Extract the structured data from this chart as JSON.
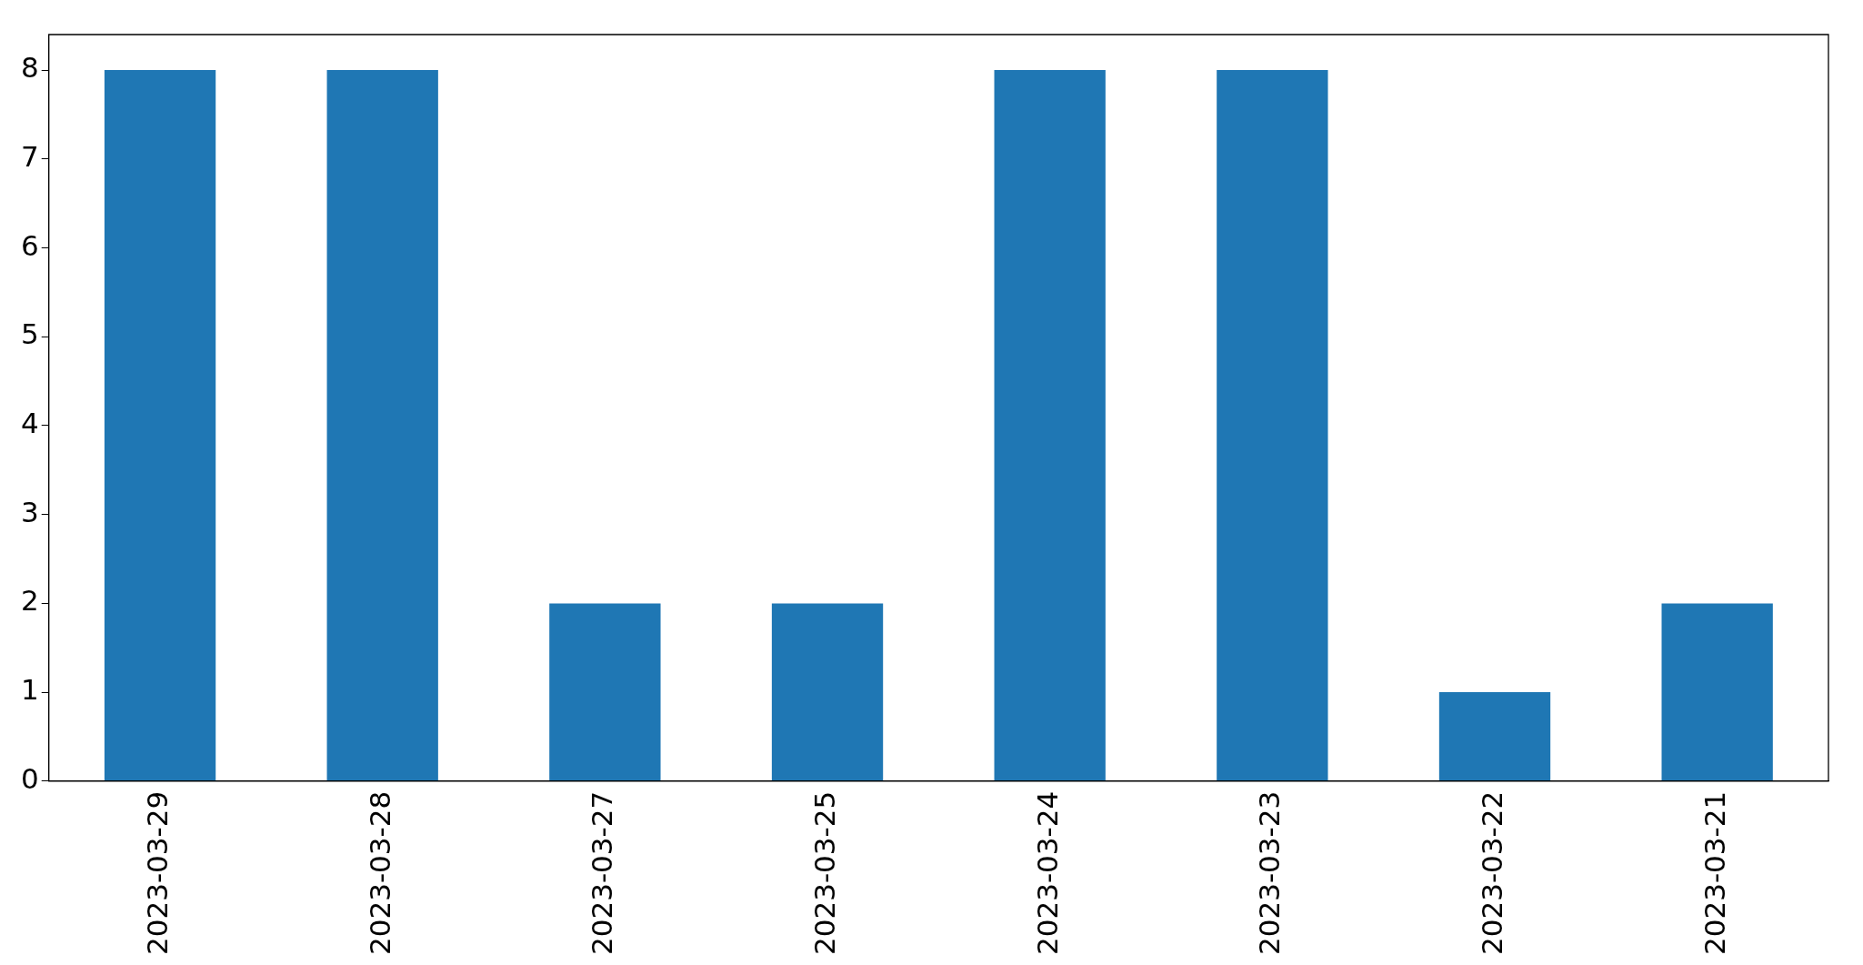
{
  "chart_data": {
    "type": "bar",
    "categories": [
      "2023-03-29",
      "2023-03-28",
      "2023-03-27",
      "2023-03-25",
      "2023-03-24",
      "2023-03-23",
      "2023-03-22",
      "2023-03-21"
    ],
    "values": [
      8,
      8,
      2,
      2,
      8,
      8,
      1,
      2
    ],
    "color": "#1f77b4",
    "ylim": [
      0,
      8.4
    ],
    "yticks": [
      0,
      1,
      2,
      3,
      4,
      5,
      6,
      7,
      8
    ],
    "grid": false,
    "legend": false
  }
}
